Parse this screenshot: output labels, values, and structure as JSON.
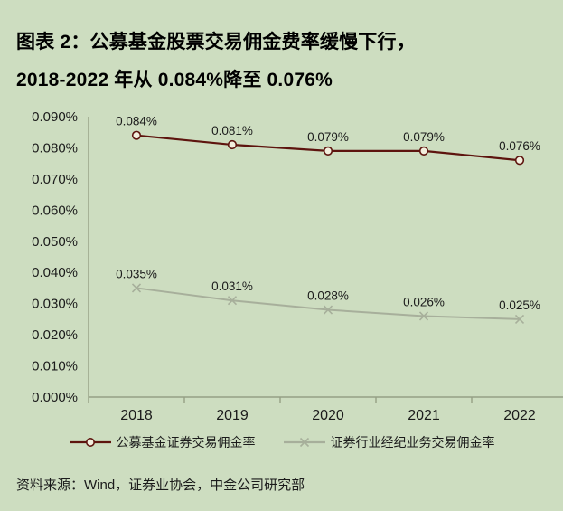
{
  "title": {
    "line1": "图表 2：公募基金股票交易佣金费率缓慢下行，",
    "line2": "2018-2022 年从 0.084%降至 0.076%"
  },
  "source": "资料来源：Wind，证券业协会，中金公司研究部",
  "colors": {
    "background": "#cdddc0",
    "series1_line": "#5d140e",
    "series1_marker_fill": "#f2eedd",
    "series2_line": "#a7af9b",
    "axis": "#95a085",
    "text": "#1b1b1b"
  },
  "chart_data": {
    "type": "line",
    "categories": [
      "2018",
      "2019",
      "2020",
      "2021",
      "2022"
    ],
    "series": [
      {
        "name": "公募基金证券交易佣金率",
        "marker": "circle",
        "values": [
          0.084,
          0.081,
          0.079,
          0.079,
          0.076
        ],
        "point_labels": [
          "0.084%",
          "0.081%",
          "0.079%",
          "0.079%",
          "0.076%"
        ]
      },
      {
        "name": "证券行业经纪业务交易佣金率",
        "marker": "x",
        "values": [
          0.035,
          0.031,
          0.028,
          0.026,
          0.025
        ],
        "point_labels": [
          "0.035%",
          "0.031%",
          "0.028%",
          "0.026%",
          "0.025%"
        ]
      }
    ],
    "ylabel": "",
    "xlabel": "",
    "ylim": [
      0.0,
      0.09
    ],
    "ytick_step": 0.01,
    "ytick_labels": [
      "0.000%",
      "0.010%",
      "0.020%",
      "0.030%",
      "0.040%",
      "0.050%",
      "0.060%",
      "0.070%",
      "0.080%",
      "0.090%"
    ],
    "grid": false,
    "legend_position": "bottom"
  }
}
